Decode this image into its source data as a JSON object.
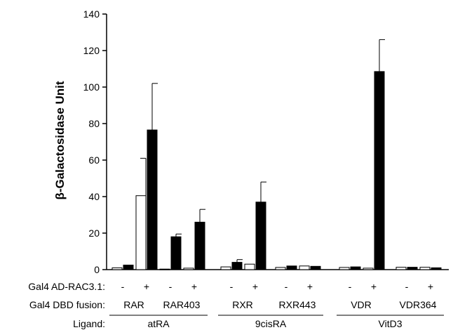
{
  "chart_data": {
    "type": "bar",
    "ylabel": "β-Galactosidase Unit",
    "ylim": [
      0,
      140
    ],
    "yticks": [
      0,
      20,
      40,
      60,
      80,
      100,
      120,
      140
    ],
    "grid": false,
    "row_labels": {
      "ad": "Gal4 AD-RAC3.1:",
      "dbd": "Gal4 DBD fusion:",
      "ligand": "Ligand:"
    },
    "ligand_groups": [
      {
        "name": "atRA",
        "fusions": [
          0,
          1
        ]
      },
      {
        "name": "9cisRA",
        "fusions": [
          2,
          3
        ]
      },
      {
        "name": "VitD3",
        "fusions": [
          4,
          5
        ]
      }
    ],
    "fusions": [
      {
        "name": "RAR",
        "ad_labels": [
          "-",
          "+"
        ],
        "without_ligand": [
          1.0,
          40.5
        ],
        "with_ligand": [
          2.5,
          76.5
        ],
        "with_ligand_err": [
          null,
          102.0
        ],
        "without_ligand_err": [
          null,
          61.0
        ]
      },
      {
        "name": "RAR403",
        "ad_labels": [
          "-",
          "+"
        ],
        "without_ligand": [
          0.3,
          0.8
        ],
        "with_ligand": [
          18.0,
          26.0
        ],
        "with_ligand_err": [
          19.5,
          33.0
        ],
        "without_ligand_err": [
          null,
          null
        ]
      },
      {
        "name": "RXR",
        "ad_labels": [
          "-",
          "+"
        ],
        "without_ligand": [
          1.5,
          3.0
        ],
        "with_ligand": [
          4.0,
          37.0
        ],
        "with_ligand_err": [
          5.5,
          48.0
        ],
        "without_ligand_err": [
          null,
          null
        ]
      },
      {
        "name": "RXR443",
        "ad_labels": [
          "-",
          "+"
        ],
        "without_ligand": [
          1.2,
          2.0
        ],
        "with_ligand": [
          2.0,
          1.8
        ],
        "with_ligand_err": [
          null,
          null
        ],
        "without_ligand_err": [
          null,
          null
        ]
      },
      {
        "name": "VDR",
        "ad_labels": [
          "-",
          "+"
        ],
        "without_ligand": [
          1.2,
          0.8
        ],
        "with_ligand": [
          1.5,
          108.5
        ],
        "with_ligand_err": [
          null,
          126.0
        ],
        "without_ligand_err": [
          null,
          null
        ]
      },
      {
        "name": "VDR364",
        "ad_labels": [
          "-",
          "+"
        ],
        "without_ligand": [
          1.3,
          1.3
        ],
        "with_ligand": [
          1.3,
          1.0
        ],
        "with_ligand_err": [
          null,
          null
        ],
        "without_ligand_err": [
          null,
          null
        ]
      }
    ],
    "colors": {
      "without_ligand": "#ffffff",
      "with_ligand": "#000000",
      "stroke": "#000000"
    }
  }
}
